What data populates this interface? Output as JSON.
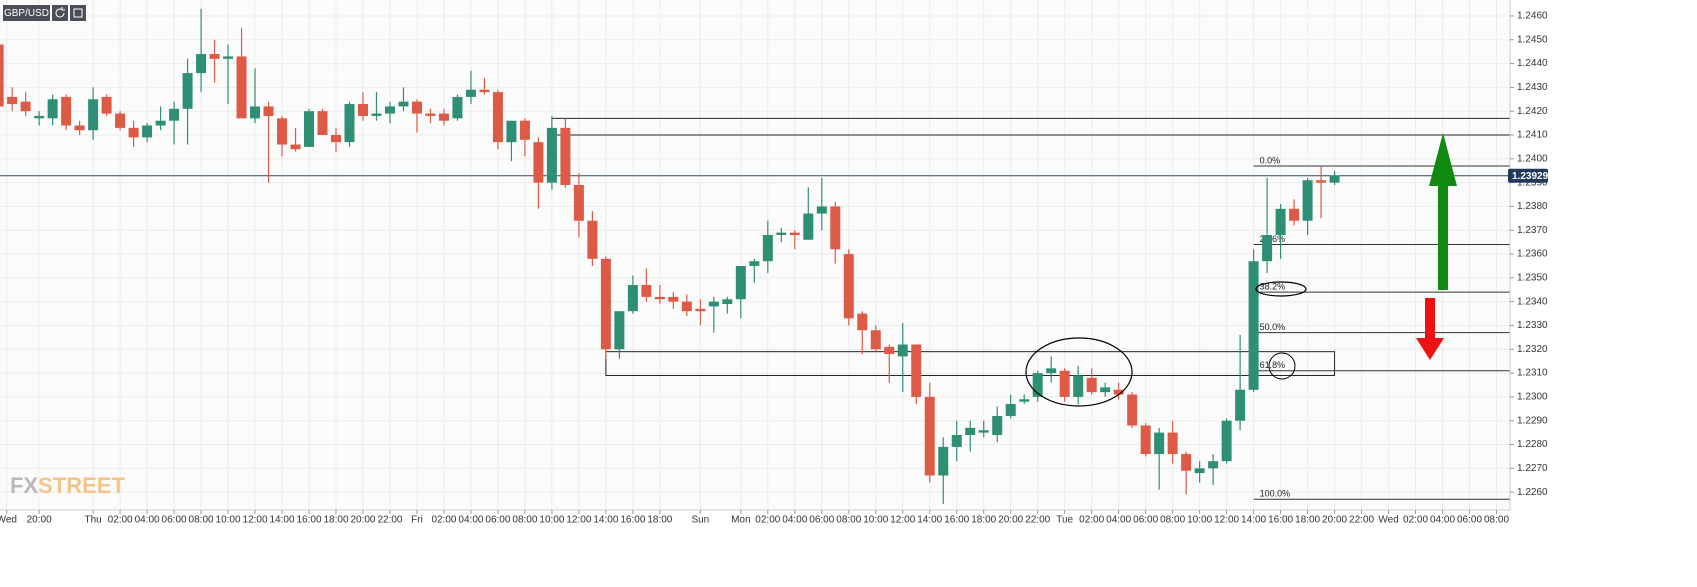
{
  "chart_data": {
    "type": "candlestick",
    "title": "GBP/USD",
    "logo": {
      "a": "FX",
      "b": "STREET"
    },
    "colors": {
      "up": "#2f8f74",
      "down": "#dc5a46"
    },
    "grid": true,
    "xlim": [
      -6.9,
      105
    ],
    "ylim": [
      1.22525,
      1.24667
    ],
    "xticks": [
      {
        "value": -6.4,
        "label": "Wed"
      },
      {
        "value": -4,
        "label": "20:00"
      },
      {
        "value": 0,
        "label": "Thu"
      },
      {
        "value": 2,
        "label": "02:00"
      },
      {
        "value": 4,
        "label": "04:00"
      },
      {
        "value": 6,
        "label": "06:00"
      },
      {
        "value": 8,
        "label": "08:00"
      },
      {
        "value": 10,
        "label": "10:00"
      },
      {
        "value": 12,
        "label": "12:00"
      },
      {
        "value": 14,
        "label": "14:00"
      },
      {
        "value": 16,
        "label": "16:00"
      },
      {
        "value": 18,
        "label": "18:00"
      },
      {
        "value": 20,
        "label": "20:00"
      },
      {
        "value": 22,
        "label": "22:00"
      },
      {
        "value": 24,
        "label": "Fri"
      },
      {
        "value": 26,
        "label": "02:00"
      },
      {
        "value": 28,
        "label": "04:00"
      },
      {
        "value": 30,
        "label": "06:00"
      },
      {
        "value": 32,
        "label": "08:00"
      },
      {
        "value": 34,
        "label": "10:00"
      },
      {
        "value": 36,
        "label": "12:00"
      },
      {
        "value": 38,
        "label": "14:00"
      },
      {
        "value": 40,
        "label": "16:00"
      },
      {
        "value": 42,
        "label": "18:00"
      },
      {
        "value": 45,
        "label": "Sun"
      },
      {
        "value": 48,
        "label": "Mon"
      },
      {
        "value": 50,
        "label": "02:00"
      },
      {
        "value": 52,
        "label": "04:00"
      },
      {
        "value": 54,
        "label": "06:00"
      },
      {
        "value": 56,
        "label": "08:00"
      },
      {
        "value": 58,
        "label": "10:00"
      },
      {
        "value": 60,
        "label": "12:00"
      },
      {
        "value": 62,
        "label": "14:00"
      },
      {
        "value": 64,
        "label": "16:00"
      },
      {
        "value": 66,
        "label": "18:00"
      },
      {
        "value": 68,
        "label": "20:00"
      },
      {
        "value": 70,
        "label": "22:00"
      },
      {
        "value": 72,
        "label": "Tue"
      },
      {
        "value": 74,
        "label": "02:00"
      },
      {
        "value": 76,
        "label": "04:00"
      },
      {
        "value": 78,
        "label": "06:00"
      },
      {
        "value": 80,
        "label": "08:00"
      },
      {
        "value": 82,
        "label": "10:00"
      },
      {
        "value": 84,
        "label": "12:00"
      },
      {
        "value": 86,
        "label": "14:00"
      },
      {
        "value": 88,
        "label": "16:00"
      },
      {
        "value": 90,
        "label": "18:00"
      },
      {
        "value": 92,
        "label": "20:00"
      },
      {
        "value": 94,
        "label": "22:00"
      },
      {
        "value": 96,
        "label": "Wed"
      },
      {
        "value": 98,
        "label": "02:00"
      },
      {
        "value": 100,
        "label": "04:00"
      },
      {
        "value": 102,
        "label": "06:00"
      },
      {
        "value": 104,
        "label": "08:00"
      }
    ],
    "yticks": [
      {
        "value": 1.226,
        "label": "1.2260"
      },
      {
        "value": 1.227,
        "label": "1.2270"
      },
      {
        "value": 1.228,
        "label": "1.2280"
      },
      {
        "value": 1.229,
        "label": "1.2290"
      },
      {
        "value": 1.23,
        "label": "1.2300"
      },
      {
        "value": 1.231,
        "label": "1.2310"
      },
      {
        "value": 1.232,
        "label": "1.2320"
      },
      {
        "value": 1.233,
        "label": "1.2330"
      },
      {
        "value": 1.234,
        "label": "1.2340"
      },
      {
        "value": 1.235,
        "label": "1.2350"
      },
      {
        "value": 1.236,
        "label": "1.2360"
      },
      {
        "value": 1.237,
        "label": "1.2370"
      },
      {
        "value": 1.238,
        "label": "1.2380"
      },
      {
        "value": 1.239,
        "label": "1.2390"
      },
      {
        "value": 1.24,
        "label": "1.2400"
      },
      {
        "value": 1.241,
        "label": "1.2410"
      },
      {
        "value": 1.242,
        "label": "1.2420"
      },
      {
        "value": 1.243,
        "label": "1.2430"
      },
      {
        "value": 1.244,
        "label": "1.2440"
      },
      {
        "value": 1.245,
        "label": "1.2450"
      },
      {
        "value": 1.246,
        "label": "1.2460"
      }
    ],
    "candles": {
      "x": [
        -7,
        -6,
        -5,
        -4,
        -3,
        -2,
        -1,
        0,
        1,
        2,
        3,
        4,
        5,
        6,
        7,
        8,
        9,
        10,
        11,
        12,
        13,
        14,
        15,
        16,
        17,
        18,
        19,
        20,
        21,
        22,
        23,
        24,
        25,
        26,
        27,
        28,
        29,
        30,
        31,
        32,
        33,
        34,
        35,
        36,
        37,
        38,
        39,
        40,
        41,
        42,
        43,
        44,
        45,
        46,
        47,
        48,
        49,
        50,
        51,
        52,
        53,
        54,
        55,
        56,
        57,
        58,
        59,
        60,
        61,
        62,
        63,
        64,
        65,
        66,
        67,
        68,
        69,
        70,
        71,
        72,
        73,
        74,
        75,
        76,
        77,
        78,
        79,
        80,
        81,
        82,
        83,
        84,
        85,
        86,
        87,
        88,
        89,
        90,
        91,
        92
      ],
      "open": [
        1.2448,
        1.2426,
        1.2424,
        1.2417,
        1.2417,
        1.2426,
        1.2414,
        1.2412,
        1.2426,
        1.2419,
        1.2413,
        1.2409,
        1.2414,
        1.2416,
        1.2421,
        1.2436,
        1.2444,
        1.2442,
        1.2443,
        1.2417,
        1.2422,
        1.2417,
        1.2406,
        1.2405,
        1.242,
        1.241,
        1.2407,
        1.2423,
        1.2418,
        1.2419,
        1.2422,
        1.2424,
        1.2419,
        1.2419,
        1.2417,
        1.2426,
        1.2429,
        1.2428,
        1.2407,
        1.2416,
        1.2407,
        1.239,
        1.2413,
        1.2389,
        1.2374,
        1.2358,
        1.232,
        1.2336,
        1.2347,
        1.2342,
        1.2342,
        1.234,
        1.2337,
        1.2338,
        1.2339,
        1.2341,
        1.2355,
        1.2357,
        1.2368,
        1.2369,
        1.2366,
        1.2377,
        1.238,
        1.236,
        1.2335,
        1.2328,
        1.2321,
        1.2317,
        1.2322,
        1.23,
        1.2267,
        1.2279,
        1.2284,
        1.2285,
        1.2284,
        1.2292,
        1.2298,
        1.23,
        1.231,
        1.2311,
        1.23,
        1.2308,
        1.2302,
        1.2303,
        1.2301,
        1.2288,
        1.2276,
        1.2285,
        1.2276,
        1.2268,
        1.227,
        1.2273,
        1.229,
        1.2303,
        1.2357,
        1.2368,
        1.2379,
        1.2374,
        1.2391,
        1.239
      ],
      "high": [
        1.2452,
        1.243,
        1.2428,
        1.242,
        1.2427,
        1.2427,
        1.2416,
        1.243,
        1.2427,
        1.242,
        1.2416,
        1.2415,
        1.2422,
        1.2424,
        1.2442,
        1.2463,
        1.245,
        1.2448,
        1.2455,
        1.2438,
        1.2424,
        1.2418,
        1.2413,
        1.2421,
        1.2421,
        1.2413,
        1.2424,
        1.2428,
        1.2428,
        1.2424,
        1.243,
        1.2425,
        1.2421,
        1.2421,
        1.2427,
        1.2437,
        1.2434,
        1.2429,
        1.2414,
        1.2417,
        1.2409,
        1.2418,
        1.2417,
        1.2394,
        1.2378,
        1.2359,
        1.2336,
        1.2351,
        1.2354,
        1.2347,
        1.2344,
        1.2343,
        1.2341,
        1.2342,
        1.2342,
        1.2355,
        1.2358,
        1.2374,
        1.2371,
        1.237,
        1.2388,
        1.2392,
        1.2382,
        1.2362,
        1.2336,
        1.233,
        1.2322,
        1.2331,
        1.2322,
        1.2306,
        1.2283,
        1.229,
        1.229,
        1.229,
        1.2296,
        1.2301,
        1.2301,
        1.2311,
        1.2317,
        1.2312,
        1.2313,
        1.2312,
        1.2306,
        1.2306,
        1.2302,
        1.2289,
        1.2287,
        1.229,
        1.2277,
        1.2273,
        1.2276,
        1.2291,
        1.2326,
        1.2362,
        1.2392,
        1.2381,
        1.2383,
        1.2392,
        1.2397,
        1.2395
      ],
      "low": [
        1.2418,
        1.242,
        1.2418,
        1.2414,
        1.2414,
        1.2412,
        1.241,
        1.2408,
        1.2418,
        1.2412,
        1.2405,
        1.2407,
        1.2412,
        1.2406,
        1.2406,
        1.2428,
        1.2432,
        1.2423,
        1.2418,
        1.2415,
        1.239,
        1.2401,
        1.2403,
        1.2405,
        1.241,
        1.2403,
        1.2405,
        1.2416,
        1.2416,
        1.2415,
        1.242,
        1.2411,
        1.2415,
        1.2414,
        1.2416,
        1.2423,
        1.2427,
        1.2404,
        1.2399,
        1.2401,
        1.2379,
        1.2387,
        1.2388,
        1.2367,
        1.2355,
        1.2316,
        1.2316,
        1.2335,
        1.234,
        1.2339,
        1.2337,
        1.2334,
        1.233,
        1.2327,
        1.2335,
        1.2333,
        1.2348,
        1.2352,
        1.2365,
        1.2362,
        1.2366,
        1.237,
        1.2356,
        1.233,
        1.2318,
        1.2319,
        1.2306,
        1.2302,
        1.2297,
        1.2264,
        1.2255,
        1.2273,
        1.2277,
        1.2283,
        1.2281,
        1.2291,
        1.2297,
        1.2298,
        1.2306,
        1.2298,
        1.2297,
        1.2301,
        1.23,
        1.2299,
        1.2287,
        1.2275,
        1.2261,
        1.2272,
        1.2259,
        1.2264,
        1.2263,
        1.2272,
        1.2286,
        1.2302,
        1.2352,
        1.2358,
        1.2372,
        1.2368,
        1.2375,
        1.2389
      ],
      "close": [
        1.2422,
        1.2423,
        1.242,
        1.2418,
        1.2425,
        1.2414,
        1.2412,
        1.2425,
        1.2419,
        1.2413,
        1.2409,
        1.2414,
        1.2416,
        1.2421,
        1.2436,
        1.2444,
        1.2442,
        1.2443,
        1.2417,
        1.2422,
        1.2418,
        1.2406,
        1.2404,
        1.242,
        1.241,
        1.2407,
        1.2423,
        1.2418,
        1.2419,
        1.2422,
        1.2424,
        1.2419,
        1.2418,
        1.2416,
        1.2426,
        1.2429,
        1.2428,
        1.2407,
        1.2416,
        1.2408,
        1.239,
        1.2413,
        1.2389,
        1.2374,
        1.2358,
        1.232,
        1.2336,
        1.2347,
        1.2342,
        1.2341,
        1.234,
        1.2336,
        1.2336,
        1.234,
        1.2341,
        1.2355,
        1.2357,
        1.2368,
        1.2369,
        1.2368,
        1.2377,
        1.238,
        1.2362,
        1.2333,
        1.2328,
        1.232,
        1.2318,
        1.2322,
        1.23,
        1.2267,
        1.2279,
        1.2284,
        1.2287,
        1.2286,
        1.2292,
        1.2297,
        1.2299,
        1.231,
        1.2312,
        1.23,
        1.2309,
        1.2302,
        1.2304,
        1.2301,
        1.2288,
        1.2276,
        1.2285,
        1.2276,
        1.2269,
        1.227,
        1.2273,
        1.229,
        1.2303,
        1.2357,
        1.2368,
        1.2379,
        1.2374,
        1.2391,
        1.239,
        1.2393
      ]
    },
    "last_price": 1.23929,
    "levels": {
      "from": 34,
      "values": [
        1.2417,
        1.241
      ]
    },
    "zone": {
      "from": 38,
      "to": 92,
      "low": 1.2309,
      "high": 1.2319
    },
    "fib": {
      "from": 86,
      "levels": [
        {
          "label": "0.0%",
          "value": 1.2397
        },
        {
          "label": "23.6%",
          "value": 1.2364
        },
        {
          "label": "38.2%",
          "value": 1.2344
        },
        {
          "label": "50.0%",
          "value": 1.2327
        },
        {
          "label": "61.8%",
          "value": 1.2311
        },
        {
          "label": "100.0%",
          "value": 1.2257
        }
      ]
    }
  }
}
